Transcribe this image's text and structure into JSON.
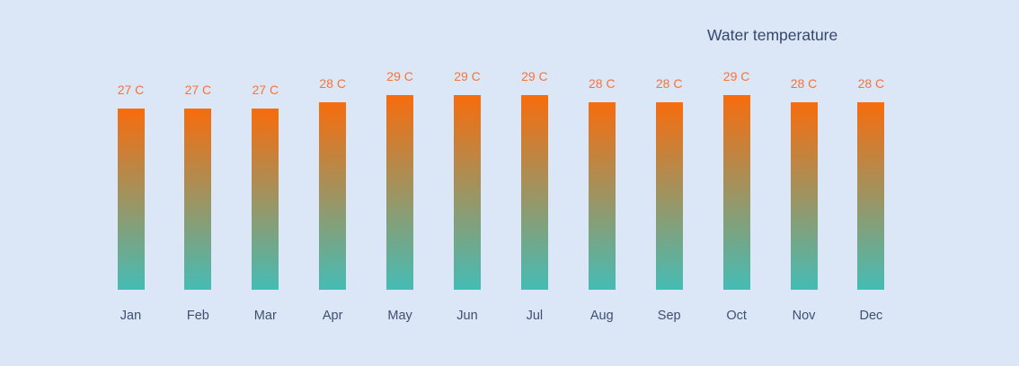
{
  "chart_data": {
    "type": "bar",
    "title": "Water temperature",
    "categories": [
      "Jan",
      "Feb",
      "Mar",
      "Apr",
      "May",
      "Jun",
      "Jul",
      "Aug",
      "Sep",
      "Oct",
      "Nov",
      "Dec"
    ],
    "values": [
      27,
      27,
      27,
      28,
      29,
      29,
      29,
      28,
      28,
      29,
      28,
      28
    ],
    "bar_labels": [
      "27 C",
      "27 C",
      "27 C",
      "28 C",
      "29 C",
      "29 C",
      "29 C",
      "28 C",
      "28 C",
      "29 C",
      "28 C",
      "28 C"
    ],
    "unit": "C",
    "xlabel": "",
    "ylabel": "",
    "ylim": [
      0,
      29
    ],
    "grid": false,
    "legend": false,
    "axes_visible": false,
    "label_position": "outside-top",
    "colors": {
      "background": "#dbe7f6",
      "bar_gradient_top": "#f76c0d",
      "bar_gradient_bottom": "#45bcb5",
      "value_label": "#f87338",
      "axis_label": "#3f4e73",
      "title": "#36466e"
    }
  }
}
